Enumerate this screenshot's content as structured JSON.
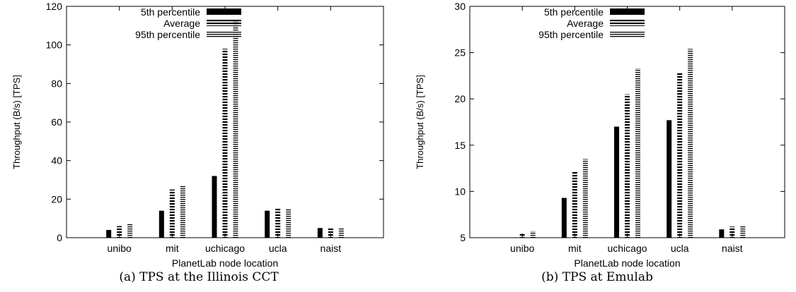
{
  "panels": [
    {
      "caption": "(a)  TPS at the Illinois CCT",
      "chart_data": {
        "type": "bar",
        "title": "",
        "xlabel": "PlanetLab node location",
        "ylabel": "Throughput (B/s) [TPS]",
        "ylim": [
          0,
          120
        ],
        "yticks": [
          "0",
          "20",
          "40",
          "60",
          "80",
          "100",
          "120"
        ],
        "grid": false,
        "legend_position": "top-left",
        "categories": [
          "unibo",
          "mit",
          "uchicago",
          "ucla",
          "naist"
        ],
        "series": [
          {
            "name": "5th percentile",
            "values": [
              4,
              14,
              32,
              14,
              5
            ]
          },
          {
            "name": "Average",
            "values": [
              6,
              25,
              98,
              15,
              5
            ]
          },
          {
            "name": "95th percentile",
            "values": [
              7,
              27,
              112,
              15,
              5
            ]
          }
        ]
      }
    },
    {
      "caption": "(b)  TPS at Emulab",
      "chart_data": {
        "type": "bar",
        "title": "",
        "xlabel": "PlanetLab node location",
        "ylabel": "Throughput (B/s) [TPS]",
        "ylim": [
          5,
          30
        ],
        "yticks": [
          "5",
          "10",
          "15",
          "20",
          "25",
          "30"
        ],
        "grid": false,
        "legend_position": "top-left",
        "categories": [
          "unibo",
          "mit",
          "uchicago",
          "ucla",
          "naist"
        ],
        "series": [
          {
            "name": "5th percentile",
            "values": [
              5,
              9.3,
              17,
              17.7,
              5.9
            ]
          },
          {
            "name": "Average",
            "values": [
              5.5,
              12.2,
              20.5,
              22.8,
              6.2
            ]
          },
          {
            "name": "95th percentile",
            "values": [
              5.7,
              13.5,
              23.3,
              25.4,
              6.3
            ]
          }
        ]
      }
    }
  ]
}
